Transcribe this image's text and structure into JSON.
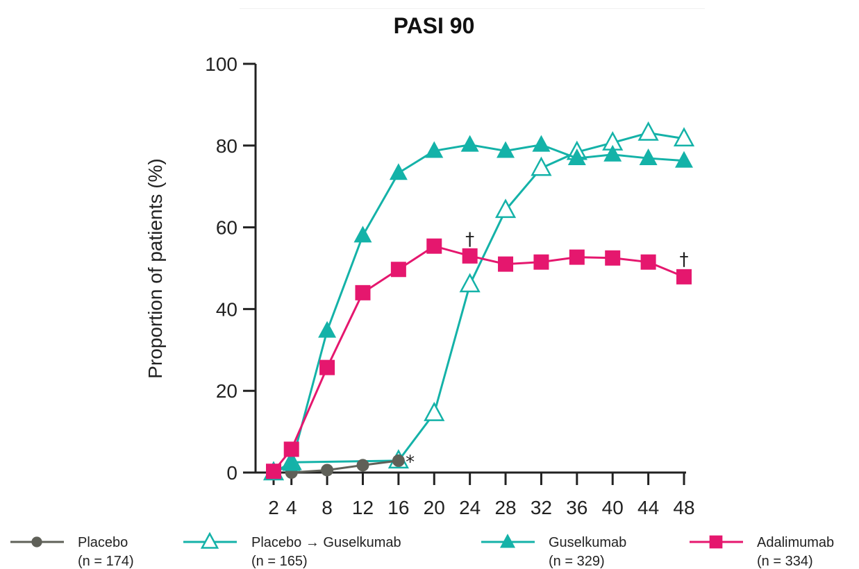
{
  "chart_data": {
    "type": "line",
    "title": "PASI 90",
    "xlabel": "",
    "ylabel": "Proportion of patients (%)",
    "ylim": [
      0,
      100
    ],
    "yticks": [
      0,
      20,
      40,
      60,
      80,
      100
    ],
    "xticks": [
      2,
      4,
      8,
      12,
      16,
      20,
      24,
      28,
      32,
      36,
      40,
      44,
      48
    ],
    "legend_position": "bottom",
    "series": [
      {
        "name": "Placebo",
        "n_label": "(n = 174)",
        "color": "#5f6058",
        "marker": "circle",
        "x": [
          4,
          8,
          12,
          16
        ],
        "y": [
          0,
          0.6,
          1.8,
          2.9
        ]
      },
      {
        "name": "Placebo → Guselkumab",
        "n_label": "(n = 165)",
        "color": "#14b2a8",
        "marker": "triangle-open",
        "x": [
          2,
          4,
          16,
          20,
          24,
          28,
          32,
          36,
          40,
          44,
          48
        ],
        "y": [
          0,
          2.5,
          2.9,
          14.5,
          46.0,
          64.2,
          74.5,
          78.4,
          80.7,
          83.1,
          81.7
        ]
      },
      {
        "name": "Guselkumab",
        "n_label": "(n = 329)",
        "color": "#14b2a8",
        "marker": "triangle-filled",
        "x": [
          2,
          4,
          8,
          12,
          16,
          20,
          24,
          28,
          32,
          36,
          40,
          44,
          48
        ],
        "y": [
          0,
          2.1,
          34.7,
          58.0,
          73.3,
          78.7,
          80.2,
          78.7,
          80.2,
          76.9,
          77.8,
          76.9,
          76.3
        ]
      },
      {
        "name": "Adalimumab",
        "n_label": "(n = 334)",
        "color": "#e5176e",
        "marker": "square",
        "x": [
          2,
          4,
          8,
          12,
          16,
          20,
          24,
          28,
          32,
          36,
          40,
          44,
          48
        ],
        "y": [
          0.3,
          5.7,
          25.7,
          44.0,
          49.7,
          55.4,
          53.0,
          51.0,
          51.5,
          52.7,
          52.5,
          51.5,
          47.9
        ]
      }
    ],
    "annotations": [
      {
        "text": "*",
        "x": 17.3,
        "y": 2.5
      },
      {
        "text": "†",
        "x": 24,
        "y": 57
      },
      {
        "text": "†",
        "x": 48,
        "y": 52
      }
    ]
  }
}
